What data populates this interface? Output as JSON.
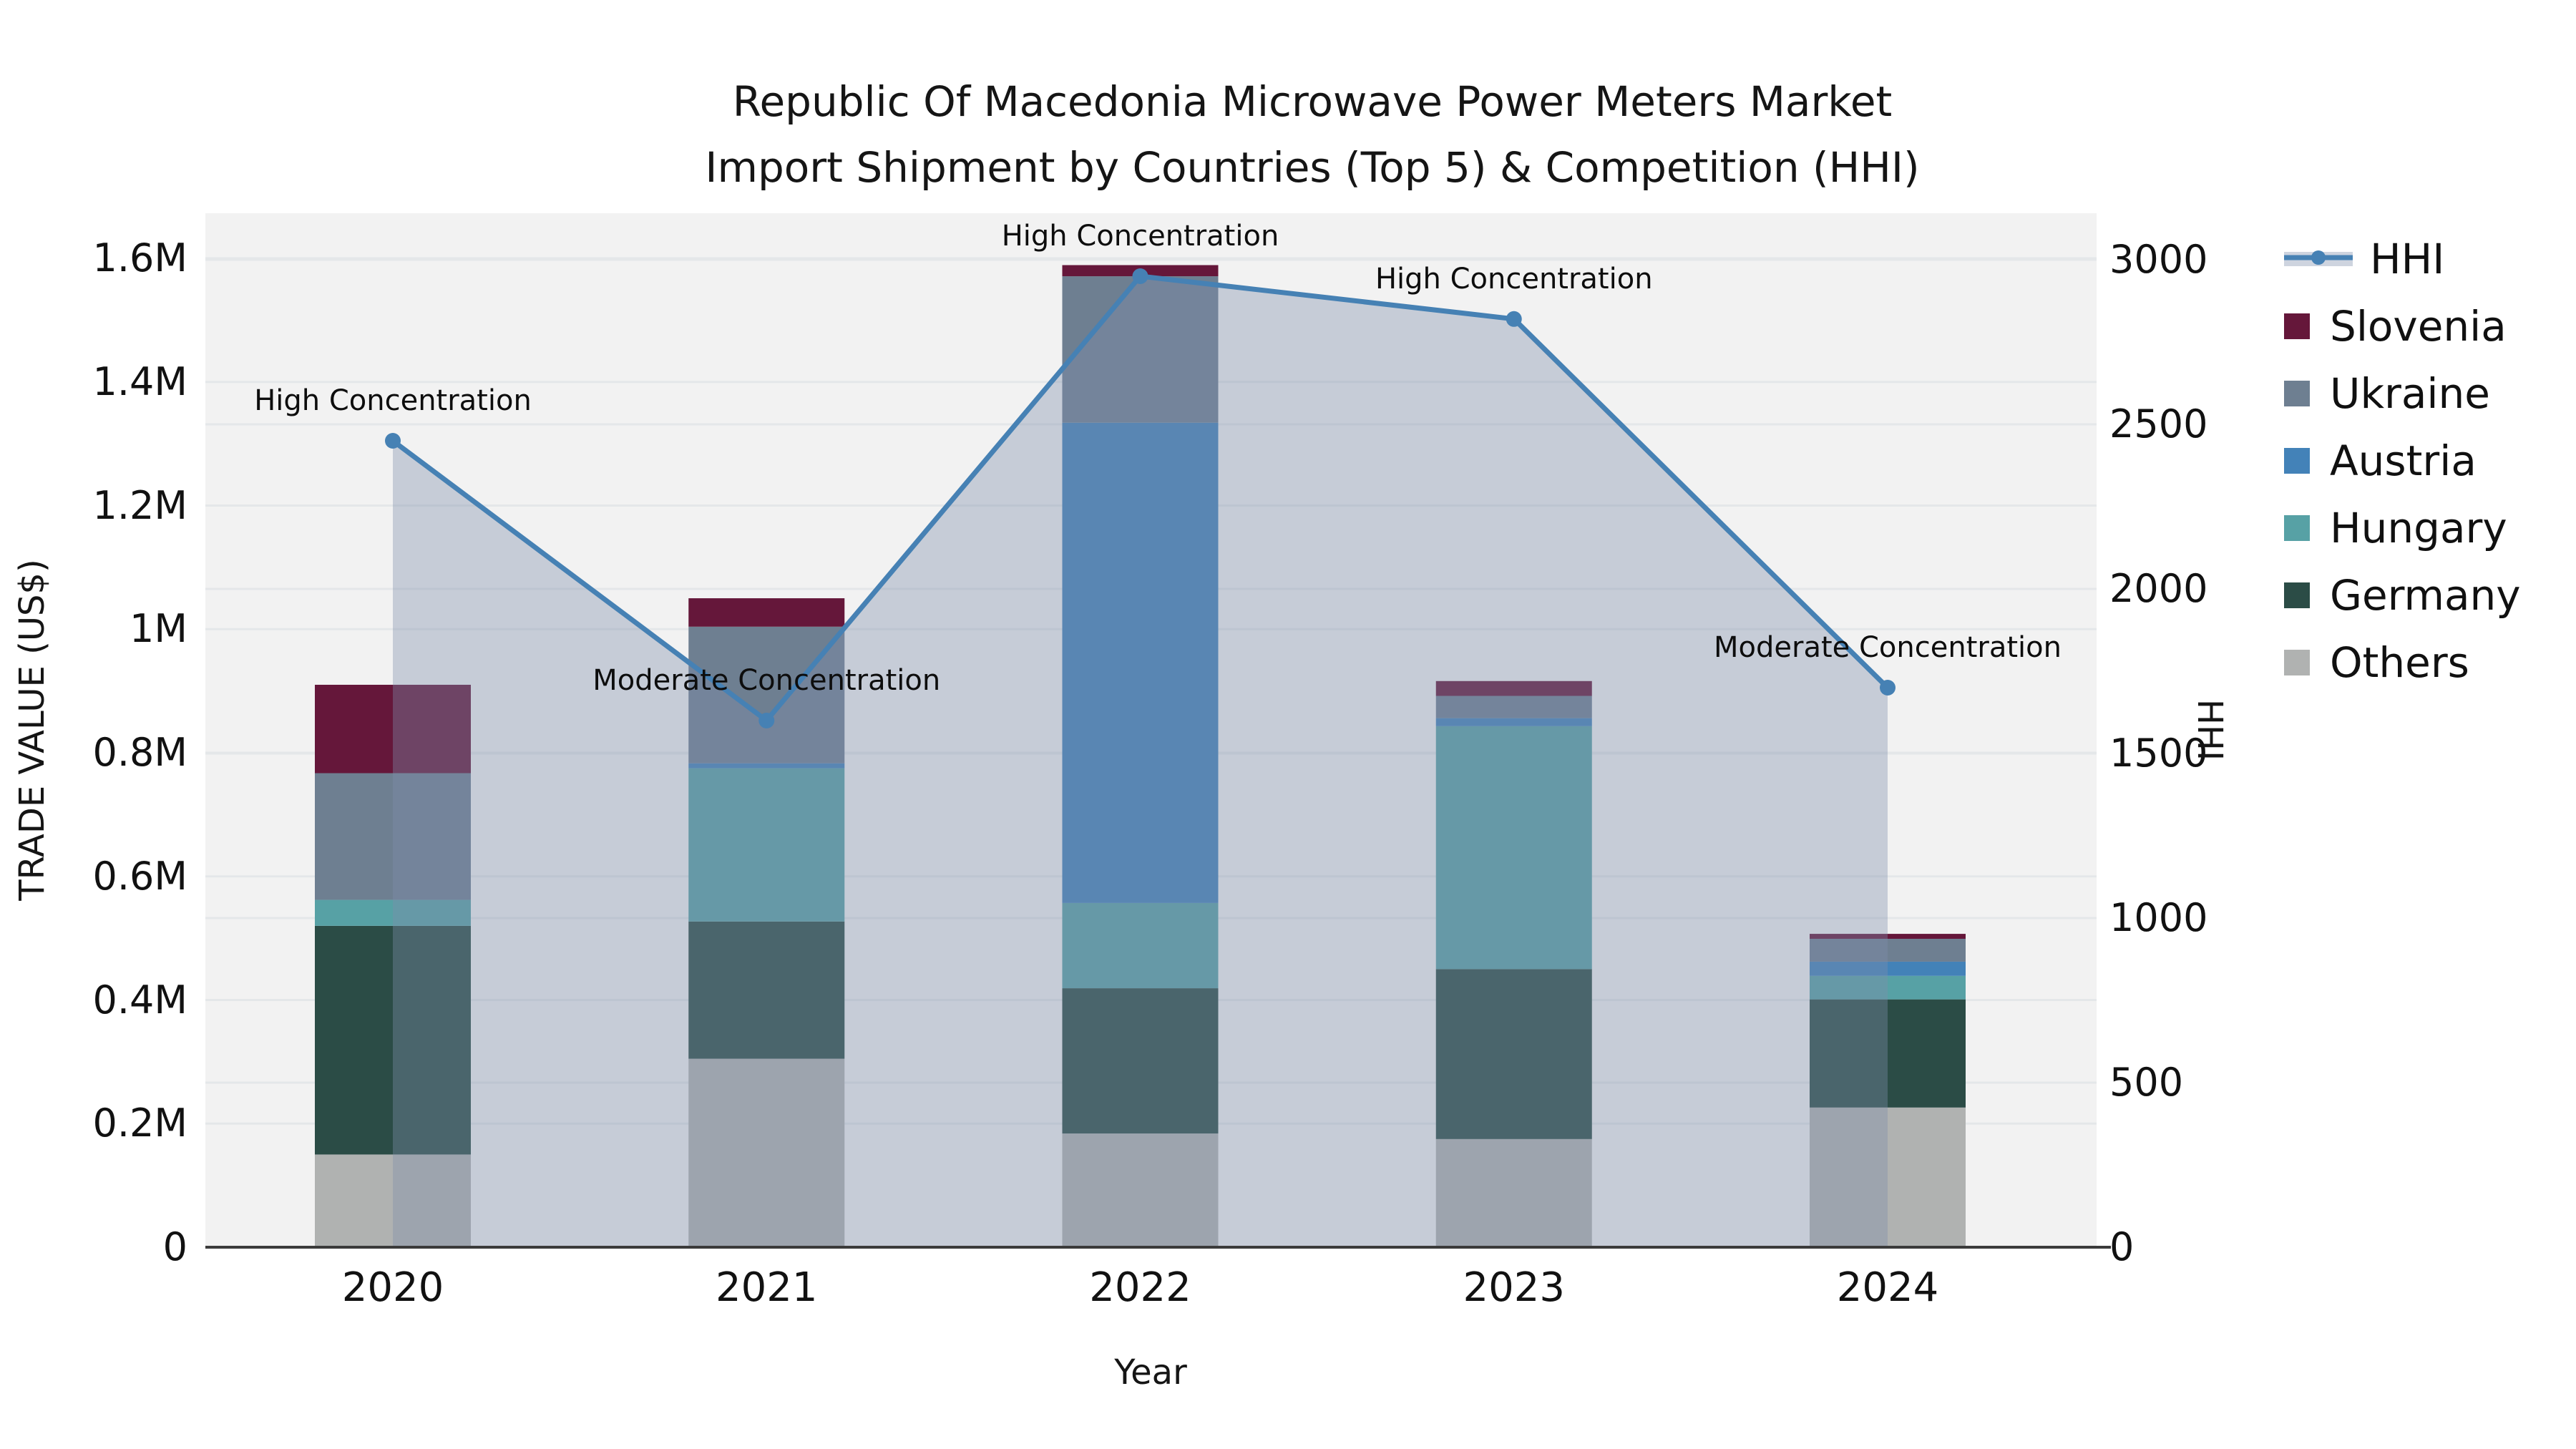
{
  "title": {
    "line1": "Republic Of Macedonia Microwave Power Meters Market",
    "line2": "Import Shipment by Countries (Top 5) & Competition (HHI)"
  },
  "axes": {
    "x_title": "Year",
    "y_left_title": "TRADE VALUE (US$)",
    "y_right_title": "HHI",
    "y_left_ticks": [
      "0",
      "0.2M",
      "0.4M",
      "0.6M",
      "0.8M",
      "1M",
      "1.2M",
      "1.4M",
      "1.6M"
    ],
    "y_right_ticks": [
      "0",
      "500",
      "1000",
      "1500",
      "2000",
      "2500",
      "3000"
    ]
  },
  "legend": {
    "items": [
      "HHI",
      "Slovenia",
      "Ukraine",
      "Austria",
      "Hungary",
      "Germany",
      "Others"
    ]
  },
  "chart_data": {
    "type": "bar+line",
    "categories": [
      "2020",
      "2021",
      "2022",
      "2023",
      "2024"
    ],
    "bar_unit": "M US$",
    "stack_order_bottom_to_top": [
      "Others",
      "Germany",
      "Hungary",
      "Austria",
      "Ukraine",
      "Slovenia"
    ],
    "series": [
      {
        "name": "Slovenia",
        "color": "#65173a",
        "values": [
          0.143,
          0.046,
          0.018,
          0.024,
          0.008
        ]
      },
      {
        "name": "Ukraine",
        "color": "#6e7f91",
        "values": [
          0.205,
          0.221,
          0.237,
          0.036,
          0.037
        ]
      },
      {
        "name": "Austria",
        "color": "#4382b8",
        "values": [
          0.0,
          0.008,
          0.777,
          0.013,
          0.023
        ]
      },
      {
        "name": "Hungary",
        "color": "#57a1a5",
        "values": [
          0.042,
          0.248,
          0.138,
          0.393,
          0.038
        ]
      },
      {
        "name": "Germany",
        "color": "#2b4c46",
        "values": [
          0.37,
          0.222,
          0.235,
          0.275,
          0.175
        ]
      },
      {
        "name": "Others",
        "color": "#b0b2b1",
        "values": [
          0.15,
          0.305,
          0.184,
          0.175,
          0.226
        ]
      }
    ],
    "bar_totals": [
      0.91,
      1.05,
      1.59,
      0.92,
      0.51
    ],
    "line_series": {
      "name": "HHI",
      "color": "#4681b4",
      "area_fill": "rgba(125,142,170,0.38)",
      "values": [
        2450,
        1600,
        2950,
        2820,
        1700
      ]
    },
    "annotations": [
      {
        "category": "2020",
        "text": "High Concentration"
      },
      {
        "category": "2021",
        "text": "Moderate Concentration"
      },
      {
        "category": "2022",
        "text": "High Concentration"
      },
      {
        "category": "2023",
        "text": "High Concentration"
      },
      {
        "category": "2024",
        "text": "Moderate Concentration"
      }
    ],
    "xlabel": "Year",
    "ylabel_left": "TRADE VALUE (US$)",
    "ylabel_right": "HHI",
    "ylim_left": [
      0,
      1.6
    ],
    "ylim_right": [
      0,
      3000
    ],
    "grid": true,
    "plot_background": "#f2f2f2",
    "grid_color": "#e4e7e9",
    "axis_line_color": "#3b3b3b",
    "legend_position": "right"
  }
}
